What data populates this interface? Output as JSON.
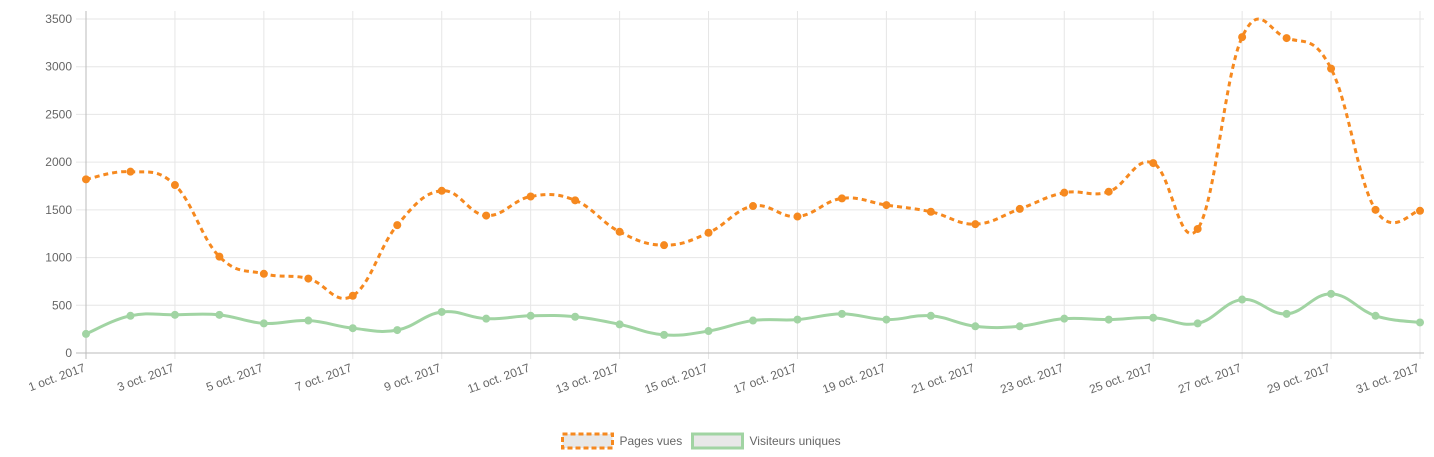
{
  "chart_data": {
    "type": "line",
    "categories": [
      "1 oct. 2017",
      null,
      "3 oct. 2017",
      null,
      "5 oct. 2017",
      null,
      "7 oct. 2017",
      null,
      "9 oct. 2017",
      null,
      "11 oct. 2017",
      null,
      "13 oct. 2017",
      null,
      "15 oct. 2017",
      null,
      "17 oct. 2017",
      null,
      "19 oct. 2017",
      null,
      "21 oct. 2017",
      null,
      "23 oct. 2017",
      null,
      "25 oct. 2017",
      null,
      "27 oct. 2017",
      null,
      "29 oct. 2017",
      null,
      "31 oct. 2017"
    ],
    "series": [
      {
        "name": "Pages vues",
        "color": "#f6891f",
        "dashed": true,
        "values": [
          1820,
          1900,
          1760,
          1010,
          830,
          780,
          600,
          1340,
          1700,
          1440,
          1640,
          1600,
          1270,
          1130,
          1260,
          1540,
          1430,
          1620,
          1550,
          1480,
          1350,
          1510,
          1680,
          1690,
          1990,
          1300,
          3310,
          3300,
          2980,
          1500,
          1490
        ]
      },
      {
        "name": "Visiteurs uniques",
        "color": "#a1d4a3",
        "dashed": false,
        "values": [
          200,
          390,
          400,
          400,
          310,
          340,
          260,
          240,
          430,
          360,
          390,
          380,
          300,
          190,
          230,
          340,
          350,
          410,
          350,
          390,
          280,
          280,
          360,
          350,
          370,
          310,
          560,
          410,
          620,
          390,
          320
        ]
      }
    ],
    "ylim": [
      0,
      3500
    ],
    "yticks": [
      0,
      500,
      1000,
      1500,
      2000,
      2500,
      3000,
      3500
    ],
    "grid": true,
    "legend": "bottom"
  }
}
